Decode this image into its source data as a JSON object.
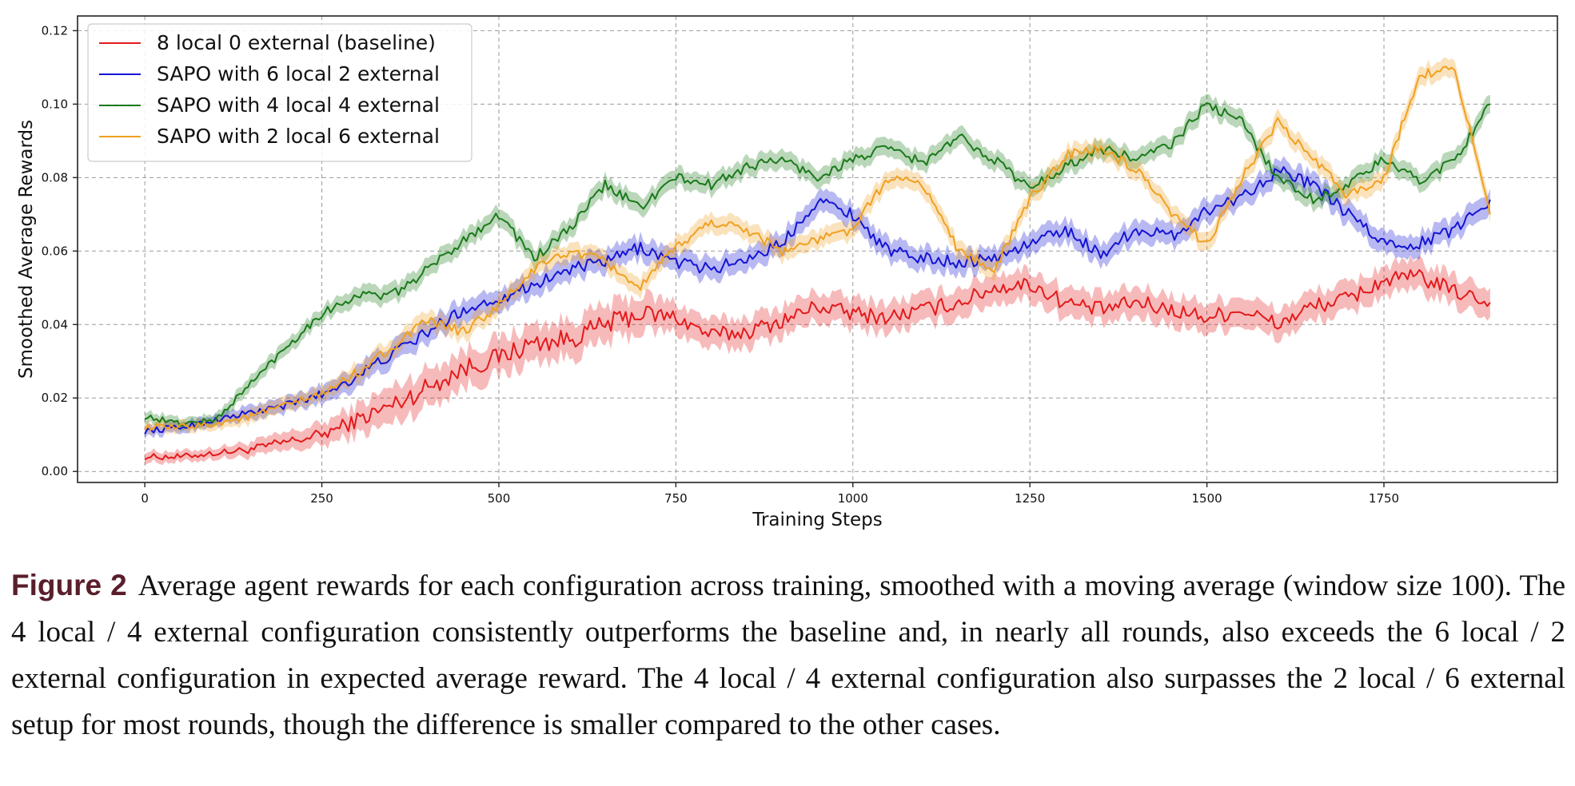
{
  "chart_data": {
    "type": "line",
    "xlabel": "Training Steps",
    "ylabel": "Smoothed Average Rewards",
    "xlim": [
      -95,
      1995
    ],
    "ylim": [
      -0.003,
      0.124
    ],
    "xticks": [
      0,
      250,
      500,
      750,
      1000,
      1250,
      1500,
      1750
    ],
    "xtick_labels": [
      "0",
      "250",
      "500",
      "750",
      "1000",
      "1250",
      "1500",
      "1750"
    ],
    "yticks": [
      0.0,
      0.02,
      0.04,
      0.06,
      0.08,
      0.1,
      0.12
    ],
    "ytick_labels": [
      "0.00",
      "0.02",
      "0.04",
      "0.06",
      "0.08",
      "0.10",
      "0.12"
    ],
    "grid": true,
    "legend_position": "top-left",
    "x": [
      0,
      50,
      100,
      150,
      200,
      250,
      300,
      350,
      400,
      450,
      500,
      550,
      600,
      650,
      700,
      750,
      800,
      850,
      900,
      950,
      1000,
      1050,
      1100,
      1150,
      1200,
      1250,
      1300,
      1350,
      1400,
      1450,
      1500,
      1550,
      1600,
      1650,
      1700,
      1750,
      1800,
      1850,
      1900
    ],
    "series": [
      {
        "name": "8 local 0 external (baseline)",
        "color": "#e31a1c",
        "values": [
          0.004,
          0.004,
          0.005,
          0.006,
          0.008,
          0.01,
          0.014,
          0.018,
          0.023,
          0.028,
          0.031,
          0.035,
          0.036,
          0.04,
          0.043,
          0.042,
          0.037,
          0.038,
          0.041,
          0.045,
          0.043,
          0.042,
          0.044,
          0.046,
          0.05,
          0.051,
          0.046,
          0.044,
          0.046,
          0.044,
          0.042,
          0.044,
          0.04,
          0.045,
          0.047,
          0.052,
          0.053,
          0.049,
          0.046
        ],
        "band": [
          0.0015,
          0.0015,
          0.0015,
          0.002,
          0.0025,
          0.003,
          0.004,
          0.005,
          0.005,
          0.005,
          0.005,
          0.005,
          0.005,
          0.005,
          0.005,
          0.004,
          0.004,
          0.004,
          0.004,
          0.004,
          0.004,
          0.004,
          0.004,
          0.004,
          0.004,
          0.004,
          0.004,
          0.004,
          0.004,
          0.004,
          0.004,
          0.004,
          0.004,
          0.004,
          0.004,
          0.004,
          0.004,
          0.004,
          0.004
        ]
      },
      {
        "name": "SAPO with 6 local 2 external",
        "color": "#1414d4",
        "values": [
          0.011,
          0.012,
          0.014,
          0.016,
          0.018,
          0.021,
          0.026,
          0.032,
          0.038,
          0.044,
          0.047,
          0.051,
          0.055,
          0.057,
          0.061,
          0.057,
          0.055,
          0.058,
          0.062,
          0.074,
          0.07,
          0.06,
          0.058,
          0.057,
          0.058,
          0.062,
          0.066,
          0.059,
          0.066,
          0.064,
          0.071,
          0.075,
          0.082,
          0.078,
          0.07,
          0.062,
          0.062,
          0.066,
          0.074
        ],
        "band": [
          0.0015,
          0.0015,
          0.0015,
          0.002,
          0.002,
          0.0025,
          0.003,
          0.003,
          0.003,
          0.003,
          0.003,
          0.003,
          0.003,
          0.003,
          0.003,
          0.003,
          0.003,
          0.003,
          0.003,
          0.003,
          0.003,
          0.003,
          0.003,
          0.003,
          0.003,
          0.003,
          0.003,
          0.003,
          0.003,
          0.003,
          0.003,
          0.003,
          0.003,
          0.003,
          0.003,
          0.003,
          0.003,
          0.003,
          0.003
        ]
      },
      {
        "name": "SAPO with 4 local 4 external",
        "color": "#1a7a1a",
        "values": [
          0.015,
          0.013,
          0.014,
          0.024,
          0.034,
          0.043,
          0.048,
          0.048,
          0.055,
          0.063,
          0.07,
          0.058,
          0.066,
          0.078,
          0.072,
          0.08,
          0.078,
          0.083,
          0.085,
          0.08,
          0.085,
          0.088,
          0.084,
          0.091,
          0.085,
          0.077,
          0.083,
          0.088,
          0.085,
          0.089,
          0.1,
          0.095,
          0.08,
          0.074,
          0.078,
          0.085,
          0.079,
          0.085,
          0.1
        ],
        "band": [
          0.0015,
          0.0015,
          0.0015,
          0.002,
          0.002,
          0.002,
          0.0025,
          0.0025,
          0.0025,
          0.0025,
          0.0025,
          0.0025,
          0.0025,
          0.0025,
          0.0025,
          0.0025,
          0.0025,
          0.0025,
          0.0025,
          0.0025,
          0.0025,
          0.0025,
          0.0025,
          0.0025,
          0.0025,
          0.0025,
          0.0025,
          0.0025,
          0.0025,
          0.0025,
          0.0025,
          0.0025,
          0.0025,
          0.0025,
          0.0025,
          0.0025,
          0.0025,
          0.0025,
          0.0025
        ]
      },
      {
        "name": "SAPO with 2 local 6 external",
        "color": "#f0a020",
        "values": [
          0.012,
          0.012,
          0.013,
          0.015,
          0.018,
          0.021,
          0.027,
          0.034,
          0.041,
          0.038,
          0.045,
          0.055,
          0.06,
          0.057,
          0.05,
          0.061,
          0.068,
          0.066,
          0.06,
          0.063,
          0.066,
          0.08,
          0.078,
          0.06,
          0.055,
          0.074,
          0.086,
          0.088,
          0.082,
          0.07,
          0.062,
          0.08,
          0.095,
          0.085,
          0.075,
          0.08,
          0.108,
          0.11,
          0.07
        ],
        "band": [
          0.0015,
          0.0015,
          0.0015,
          0.002,
          0.002,
          0.002,
          0.0025,
          0.0025,
          0.0025,
          0.0025,
          0.0025,
          0.0025,
          0.0025,
          0.0025,
          0.0025,
          0.0025,
          0.0025,
          0.0025,
          0.0025,
          0.0025,
          0.0025,
          0.0025,
          0.0025,
          0.0025,
          0.0025,
          0.0025,
          0.0025,
          0.0025,
          0.0025,
          0.0025,
          0.0025,
          0.0025,
          0.0025,
          0.0025,
          0.0025,
          0.0025,
          0.0025,
          0.0025,
          0.0025
        ]
      }
    ]
  },
  "caption": {
    "label": "Figure 2",
    "text": "Average agent rewards for each configuration across training, smoothed with a moving average (window size 100). The 4 local / 4 external configuration consistently outperforms the baseline and, in nearly all rounds, also exceeds the 6 local / 2 external configuration in expected average reward. The 4 local / 4 external configuration also surpasses the 2 local / 6 external setup for most rounds, though the difference is smaller compared to the other cases."
  }
}
